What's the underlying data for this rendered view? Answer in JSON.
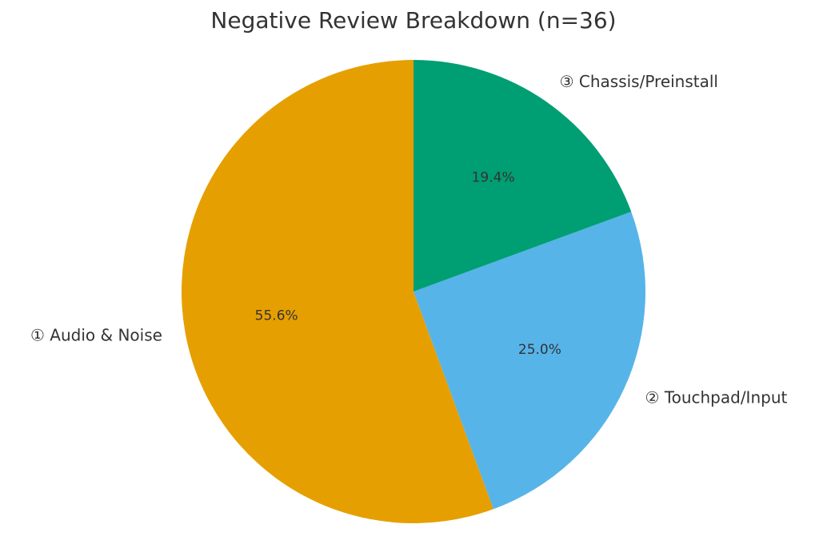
{
  "chart_data": {
    "type": "pie",
    "title": "Negative Review Breakdown (n=36)",
    "categories": [
      "① Audio & Noise",
      "② Touchpad/Input",
      "③ Chassis/Preinstall"
    ],
    "values": [
      55.6,
      25.0,
      19.4
    ],
    "value_labels": [
      "55.6%",
      "25.0%",
      "19.4%"
    ],
    "colors": [
      "#E69F00",
      "#56B4E9",
      "#009E73"
    ]
  }
}
